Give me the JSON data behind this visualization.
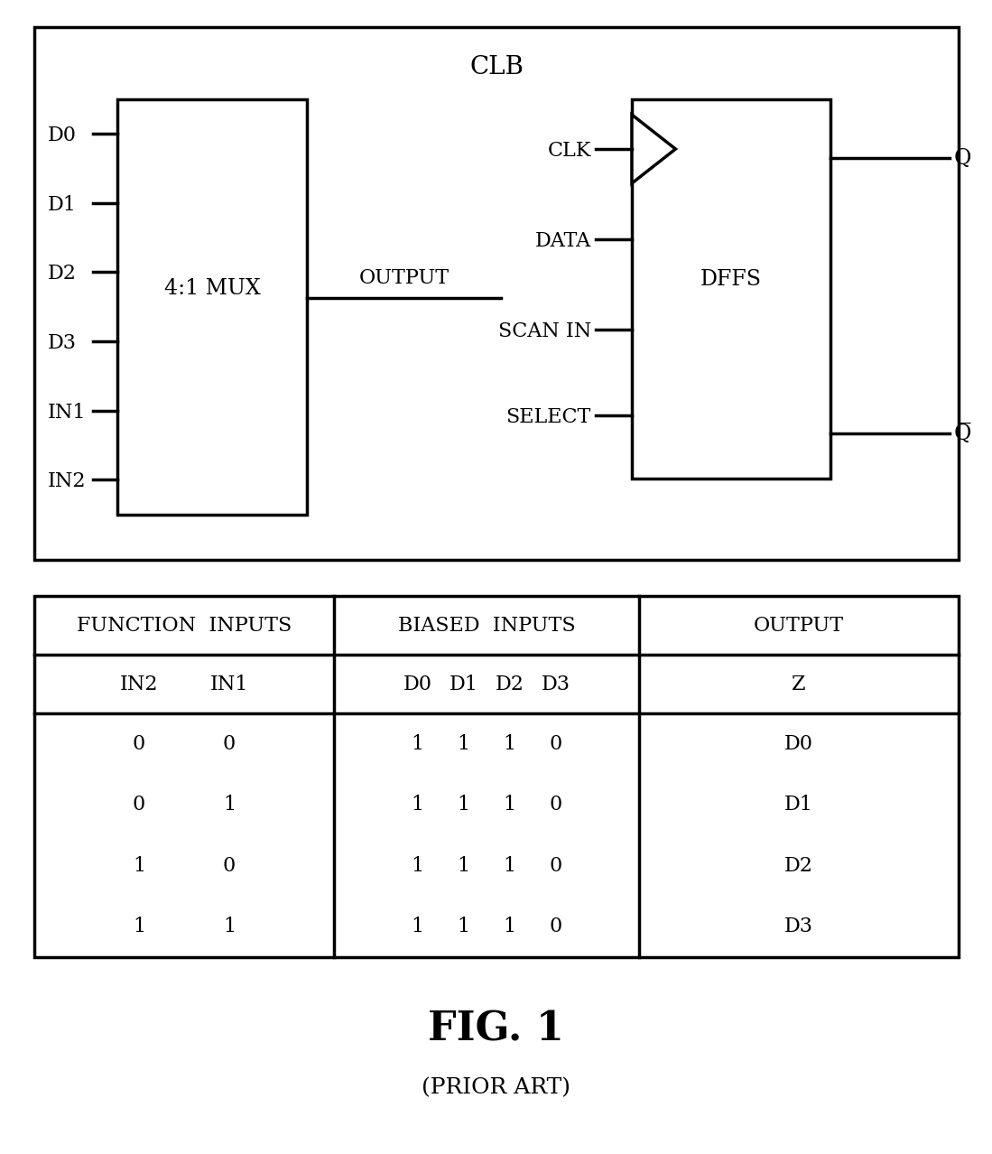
{
  "bg_color": "#ffffff",
  "line_color": "#000000",
  "clb_label": "CLB",
  "mux_label": "4:1 MUX",
  "dffs_label": "DFFS",
  "mux_inputs": [
    "D0",
    "D1",
    "D2",
    "D3",
    "IN1",
    "IN2"
  ],
  "dffs_inputs": [
    "CLK",
    "DATA",
    "SCAN IN",
    "SELECT"
  ],
  "mux_output_label": "OUTPUT",
  "q_label": "Q",
  "qbar_label": "Q̅",
  "table_header_row": [
    "FUNCTION  INPUTS",
    "BIASED  INPUTS",
    "OUTPUT"
  ],
  "table_data_col1": [
    [
      "0",
      "0"
    ],
    [
      "0",
      "1"
    ],
    [
      "1",
      "0"
    ],
    [
      "1",
      "1"
    ]
  ],
  "table_data_col2": [
    [
      "1",
      "1",
      "1",
      "0"
    ],
    [
      "1",
      "1",
      "1",
      "0"
    ],
    [
      "1",
      "1",
      "1",
      "0"
    ],
    [
      "1",
      "1",
      "1",
      "0"
    ]
  ],
  "table_data_col3": [
    "D0",
    "D1",
    "D2",
    "D3"
  ],
  "title": "FIG. 1",
  "subtitle": "(PRIOR ART)",
  "lw": 2.5
}
